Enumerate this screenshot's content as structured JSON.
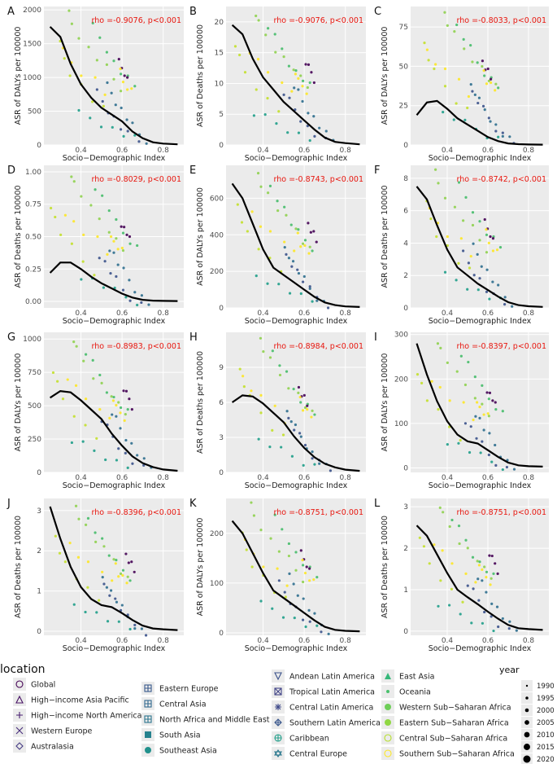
{
  "chart_data": [
    {
      "panel_label": "A",
      "type": "scatter",
      "ylabel": "ASR of DALYs per 100000",
      "xlabel": "Socio−Demographic Index",
      "annotation": "rho =-0.9076, p<0.001",
      "ylim": [
        0,
        2050
      ],
      "yticks": [
        0,
        500,
        1000,
        1500,
        2000
      ],
      "yticklabels": [
        "0",
        "500",
        "1000",
        "1500",
        "2000"
      ],
      "xlim": [
        0.22,
        0.9
      ],
      "xticks": [
        0.4,
        0.6,
        0.8
      ],
      "xticklabels": [
        "0.4",
        "0.6",
        "0.8"
      ],
      "curve": [
        [
          0.25,
          1750
        ],
        [
          0.3,
          1600
        ],
        [
          0.35,
          1200
        ],
        [
          0.4,
          900
        ],
        [
          0.45,
          700
        ],
        [
          0.5,
          550
        ],
        [
          0.55,
          450
        ],
        [
          0.6,
          350
        ],
        [
          0.65,
          200
        ],
        [
          0.7,
          100
        ],
        [
          0.75,
          40
        ],
        [
          0.8,
          20
        ],
        [
          0.87,
          10
        ]
      ]
    },
    {
      "panel_label": "B",
      "type": "scatter",
      "ylabel": "ASR of Deaths per 100000",
      "xlabel": "Socio−Demographic Index",
      "annotation": "rho =-0.9076, p<0.001",
      "ylim": [
        0,
        22.5
      ],
      "yticks": [
        0,
        5,
        10,
        15,
        20
      ],
      "yticklabels": [
        "0",
        "5",
        "10",
        "15",
        "20"
      ],
      "xlim": [
        0.22,
        0.9
      ],
      "xticks": [
        0.4,
        0.6,
        0.8
      ],
      "xticklabels": [
        "0.4",
        "0.6",
        "0.8"
      ],
      "curve": [
        [
          0.25,
          19.5
        ],
        [
          0.3,
          18
        ],
        [
          0.35,
          14
        ],
        [
          0.4,
          11
        ],
        [
          0.45,
          9
        ],
        [
          0.5,
          7
        ],
        [
          0.55,
          5.5
        ],
        [
          0.6,
          4
        ],
        [
          0.65,
          2.5
        ],
        [
          0.7,
          1.2
        ],
        [
          0.75,
          0.5
        ],
        [
          0.8,
          0.3
        ],
        [
          0.87,
          0.1
        ]
      ]
    },
    {
      "panel_label": "C",
      "type": "scatter",
      "ylabel": "ASR of DALYs per 100000",
      "xlabel": "Socio−Demographic Index",
      "annotation": "rho =-0.8033, p<0.001",
      "ylim": [
        0,
        88
      ],
      "yticks": [
        0,
        25,
        50,
        75
      ],
      "yticklabels": [
        "0",
        "25",
        "50",
        "75"
      ],
      "xlim": [
        0.22,
        0.9
      ],
      "xticks": [
        0.4,
        0.6,
        0.8
      ],
      "xticklabels": [
        "0.4",
        "0.6",
        "0.8"
      ],
      "curve": [
        [
          0.25,
          19
        ],
        [
          0.3,
          27
        ],
        [
          0.35,
          28
        ],
        [
          0.4,
          23
        ],
        [
          0.45,
          17
        ],
        [
          0.5,
          13
        ],
        [
          0.55,
          9
        ],
        [
          0.6,
          5
        ],
        [
          0.65,
          2.5
        ],
        [
          0.7,
          1
        ],
        [
          0.75,
          0.5
        ],
        [
          0.8,
          0.3
        ],
        [
          0.87,
          0.2
        ]
      ]
    },
    {
      "panel_label": "D",
      "type": "scatter",
      "ylabel": "ASR of Deaths per 100000",
      "xlabel": "Socio−Demographic Index",
      "annotation": "rho =-0.8029, p<0.001",
      "ylim": [
        -0.05,
        1.05
      ],
      "yticks": [
        0,
        0.25,
        0.5,
        0.75,
        1.0
      ],
      "yticklabels": [
        "0.00",
        "0.25",
        "0.50",
        "0.75",
        "1.00"
      ],
      "xlim": [
        0.22,
        0.9
      ],
      "xticks": [
        0.4,
        0.6,
        0.8
      ],
      "xticklabels": [
        "0.4",
        "0.6",
        "0.8"
      ],
      "curve": [
        [
          0.25,
          0.22
        ],
        [
          0.3,
          0.3
        ],
        [
          0.35,
          0.3
        ],
        [
          0.4,
          0.25
        ],
        [
          0.45,
          0.19
        ],
        [
          0.5,
          0.14
        ],
        [
          0.55,
          0.1
        ],
        [
          0.6,
          0.06
        ],
        [
          0.65,
          0.03
        ],
        [
          0.7,
          0.012
        ],
        [
          0.75,
          0.006
        ],
        [
          0.8,
          0.004
        ],
        [
          0.87,
          0.003
        ]
      ]
    },
    {
      "panel_label": "E",
      "type": "scatter",
      "ylabel": "ASR of DALYs per 100000",
      "xlabel": "Socio−Demographic Index",
      "annotation": "rho =-0.8743, p<0.001",
      "ylim": [
        0,
        780
      ],
      "yticks": [
        0,
        200,
        400,
        600
      ],
      "yticklabels": [
        "0",
        "200",
        "400",
        "600"
      ],
      "xlim": [
        0.22,
        0.9
      ],
      "xticks": [
        0.4,
        0.6,
        0.8
      ],
      "xticklabels": [
        "0.4",
        "0.6",
        "0.8"
      ],
      "curve": [
        [
          0.25,
          680
        ],
        [
          0.3,
          600
        ],
        [
          0.35,
          460
        ],
        [
          0.4,
          320
        ],
        [
          0.45,
          220
        ],
        [
          0.5,
          180
        ],
        [
          0.55,
          140
        ],
        [
          0.6,
          100
        ],
        [
          0.65,
          60
        ],
        [
          0.7,
          30
        ],
        [
          0.75,
          15
        ],
        [
          0.8,
          8
        ],
        [
          0.87,
          5
        ]
      ]
    },
    {
      "panel_label": "F",
      "type": "scatter",
      "ylabel": "ASR of Deaths per 100000",
      "xlabel": "Socio−Demographic Index",
      "annotation": "rho =-0.8742, p<0.001",
      "ylim": [
        0,
        8.8
      ],
      "yticks": [
        0,
        2,
        4,
        6,
        8
      ],
      "yticklabels": [
        "0",
        "2",
        "4",
        "6",
        "8"
      ],
      "xlim": [
        0.22,
        0.9
      ],
      "xticks": [
        0.4,
        0.6,
        0.8
      ],
      "xticklabels": [
        "0.4",
        "0.6",
        "0.8"
      ],
      "curve": [
        [
          0.25,
          7.5
        ],
        [
          0.3,
          6.7
        ],
        [
          0.35,
          5.1
        ],
        [
          0.4,
          3.6
        ],
        [
          0.45,
          2.5
        ],
        [
          0.5,
          2.0
        ],
        [
          0.55,
          1.5
        ],
        [
          0.6,
          1.1
        ],
        [
          0.65,
          0.7
        ],
        [
          0.7,
          0.35
        ],
        [
          0.75,
          0.17
        ],
        [
          0.8,
          0.1
        ],
        [
          0.87,
          0.06
        ]
      ]
    },
    {
      "panel_label": "G",
      "type": "scatter",
      "ylabel": "ASR of DALYs per 100000",
      "xlabel": "Socio−Demographic Index",
      "annotation": "rho =-0.8983, p<0.001",
      "ylim": [
        0,
        1050
      ],
      "yticks": [
        0,
        250,
        500,
        750,
        1000
      ],
      "yticklabels": [
        "0",
        "250",
        "500",
        "750",
        "1000"
      ],
      "xlim": [
        0.22,
        0.9
      ],
      "xticks": [
        0.4,
        0.6,
        0.8
      ],
      "xticklabels": [
        "0.4",
        "0.6",
        "0.8"
      ],
      "curve": [
        [
          0.25,
          560
        ],
        [
          0.3,
          610
        ],
        [
          0.35,
          600
        ],
        [
          0.4,
          540
        ],
        [
          0.45,
          470
        ],
        [
          0.5,
          400
        ],
        [
          0.55,
          290
        ],
        [
          0.6,
          200
        ],
        [
          0.65,
          120
        ],
        [
          0.7,
          70
        ],
        [
          0.75,
          40
        ],
        [
          0.8,
          22
        ],
        [
          0.87,
          12
        ]
      ]
    },
    {
      "panel_label": "H",
      "type": "scatter",
      "ylabel": "ASR of Deaths per 100000",
      "xlabel": "Socio−Demographic Index",
      "annotation": "rho =-0.8984, p<0.001",
      "ylim": [
        0,
        12
      ],
      "yticks": [
        0,
        3,
        6,
        9
      ],
      "yticklabels": [
        "0",
        "3",
        "6",
        "9"
      ],
      "xlim": [
        0.22,
        0.9
      ],
      "xticks": [
        0.4,
        0.6,
        0.8
      ],
      "xticklabels": [
        "0.4",
        "0.6",
        "0.8"
      ],
      "curve": [
        [
          0.25,
          6.0
        ],
        [
          0.3,
          6.6
        ],
        [
          0.35,
          6.5
        ],
        [
          0.4,
          5.9
        ],
        [
          0.45,
          5.1
        ],
        [
          0.5,
          4.3
        ],
        [
          0.55,
          3.1
        ],
        [
          0.6,
          2.1
        ],
        [
          0.65,
          1.3
        ],
        [
          0.7,
          0.75
        ],
        [
          0.75,
          0.43
        ],
        [
          0.8,
          0.24
        ],
        [
          0.87,
          0.13
        ]
      ]
    },
    {
      "panel_label": "I",
      "type": "scatter",
      "ylabel": "ASR of DALYs per 100000",
      "xlabel": "Socio−Demographic Index",
      "annotation": "rho =-0.8397, p<0.001",
      "ylim": [
        -10,
        305
      ],
      "yticks": [
        0,
        100,
        200,
        300
      ],
      "yticklabels": [
        "0",
        "100",
        "200",
        "300"
      ],
      "xlim": [
        0.22,
        0.9
      ],
      "xticks": [
        0.4,
        0.6,
        0.8
      ],
      "xticklabels": [
        "0.4",
        "0.6",
        "0.8"
      ],
      "curve": [
        [
          0.25,
          280
        ],
        [
          0.3,
          210
        ],
        [
          0.35,
          150
        ],
        [
          0.4,
          105
        ],
        [
          0.45,
          75
        ],
        [
          0.5,
          60
        ],
        [
          0.55,
          55
        ],
        [
          0.6,
          40
        ],
        [
          0.65,
          25
        ],
        [
          0.7,
          12
        ],
        [
          0.75,
          6
        ],
        [
          0.8,
          4
        ],
        [
          0.87,
          3
        ]
      ]
    },
    {
      "panel_label": "J",
      "type": "scatter",
      "ylabel": "ASR of Deaths per 100000",
      "xlabel": "Socio−Demographic Index",
      "annotation": "rho =-0.8396, p<0.001",
      "ylim": [
        -0.1,
        3.3
      ],
      "yticks": [
        0,
        1,
        2,
        3
      ],
      "yticklabels": [
        "0",
        "1",
        "2",
        "3"
      ],
      "xlim": [
        0.22,
        0.9
      ],
      "xticks": [
        0.4,
        0.6,
        0.8
      ],
      "xticklabels": [
        "0.4",
        "0.6",
        "0.8"
      ],
      "curve": [
        [
          0.25,
          3.1
        ],
        [
          0.3,
          2.3
        ],
        [
          0.35,
          1.6
        ],
        [
          0.4,
          1.1
        ],
        [
          0.45,
          0.8
        ],
        [
          0.5,
          0.65
        ],
        [
          0.55,
          0.6
        ],
        [
          0.6,
          0.45
        ],
        [
          0.65,
          0.28
        ],
        [
          0.7,
          0.14
        ],
        [
          0.75,
          0.07
        ],
        [
          0.8,
          0.05
        ],
        [
          0.87,
          0.03
        ]
      ]
    },
    {
      "panel_label": "K",
      "type": "scatter",
      "ylabel": "ASR of DALYs per 100000",
      "xlabel": "Socio−Demographic Index",
      "annotation": "rho =-0.8751, p<0.001",
      "ylim": [
        -5,
        270
      ],
      "yticks": [
        0,
        100,
        200
      ],
      "yticklabels": [
        "0",
        "100",
        "200"
      ],
      "xlim": [
        0.22,
        0.9
      ],
      "xticks": [
        0.4,
        0.6,
        0.8
      ],
      "xticklabels": [
        "0.4",
        "0.6",
        "0.8"
      ],
      "curve": [
        [
          0.25,
          225
        ],
        [
          0.3,
          200
        ],
        [
          0.35,
          160
        ],
        [
          0.4,
          120
        ],
        [
          0.45,
          85
        ],
        [
          0.5,
          70
        ],
        [
          0.55,
          55
        ],
        [
          0.6,
          40
        ],
        [
          0.65,
          25
        ],
        [
          0.7,
          12
        ],
        [
          0.75,
          6
        ],
        [
          0.8,
          4
        ],
        [
          0.87,
          3
        ]
      ]
    },
    {
      "panel_label": "L",
      "type": "scatter",
      "ylabel": "ASR of Deaths per 100000",
      "xlabel": "Socio−Demographic Index",
      "annotation": "rho =-0.8751, p<0.001",
      "ylim": [
        -0.1,
        3.2
      ],
      "yticks": [
        0,
        1,
        2,
        3
      ],
      "yticklabels": [
        "0",
        "1",
        "2",
        "3"
      ],
      "xlim": [
        0.22,
        0.9
      ],
      "xticks": [
        0.4,
        0.6,
        0.8
      ],
      "xticklabels": [
        "0.4",
        "0.6",
        "0.8"
      ],
      "curve": [
        [
          0.25,
          2.55
        ],
        [
          0.3,
          2.3
        ],
        [
          0.35,
          1.85
        ],
        [
          0.4,
          1.4
        ],
        [
          0.45,
          1.0
        ],
        [
          0.5,
          0.82
        ],
        [
          0.55,
          0.65
        ],
        [
          0.6,
          0.47
        ],
        [
          0.65,
          0.3
        ],
        [
          0.7,
          0.15
        ],
        [
          0.75,
          0.07
        ],
        [
          0.8,
          0.05
        ],
        [
          0.87,
          0.03
        ]
      ]
    }
  ],
  "legend": {
    "location_title": "location",
    "year_title": "year",
    "locations": [
      {
        "name": "Global",
        "symbol": "circle-open",
        "color": "#440154"
      },
      {
        "name": "High−income Asia Pacific",
        "symbol": "triangle-open",
        "color": "#471164"
      },
      {
        "name": "High−income North America",
        "symbol": "plus",
        "color": "#481f70"
      },
      {
        "name": "Western Europe",
        "symbol": "cross",
        "color": "#472d7b"
      },
      {
        "name": "Australasia",
        "symbol": "diamond-open",
        "color": "#443a83"
      },
      {
        "name": "Eastern Europe",
        "symbol": "square-cross",
        "color": "#38598c"
      },
      {
        "name": "Central Asia",
        "symbol": "square-cross",
        "color": "#31688e"
      },
      {
        "name": "North Africa and Middle East",
        "symbol": "square-grid",
        "color": "#2b758e"
      },
      {
        "name": "South Asia",
        "symbol": "square",
        "color": "#26828e"
      },
      {
        "name": "Southeast Asia",
        "symbol": "circle",
        "color": "#21918c"
      },
      {
        "name": "Andean Latin America",
        "symbol": "triangle-down-open",
        "color": "#3b528b"
      },
      {
        "name": "Tropical Latin America",
        "symbol": "square-x",
        "color": "#414487"
      },
      {
        "name": "Central Latin America",
        "symbol": "asterisk",
        "color": "#3f4a8a"
      },
      {
        "name": "Southern Latin America",
        "symbol": "diamond-plus",
        "color": "#39568c"
      },
      {
        "name": "Caribbean",
        "symbol": "circle-plus",
        "color": "#1f9e89"
      },
      {
        "name": "Central Europe",
        "symbol": "star",
        "color": "#2a788e"
      },
      {
        "name": "East Asia",
        "symbol": "triangle",
        "color": "#35b779"
      },
      {
        "name": "Oceania",
        "symbol": "small-circle",
        "color": "#4ac16d"
      },
      {
        "name": "Western Sub−Saharan Africa",
        "symbol": "circle",
        "color": "#6ece58"
      },
      {
        "name": "Eastern Sub−Saharan Africa",
        "symbol": "circle",
        "color": "#90d743"
      },
      {
        "name": "Central Sub−Saharan Africa",
        "symbol": "circle-open",
        "color": "#b5de2b"
      },
      {
        "name": "Southern Sub−Saharan Africa",
        "symbol": "circle-open",
        "color": "#fde725"
      }
    ],
    "years": [
      "1990",
      "1995",
      "2000",
      "2005",
      "2010",
      "2015",
      "2020"
    ]
  }
}
